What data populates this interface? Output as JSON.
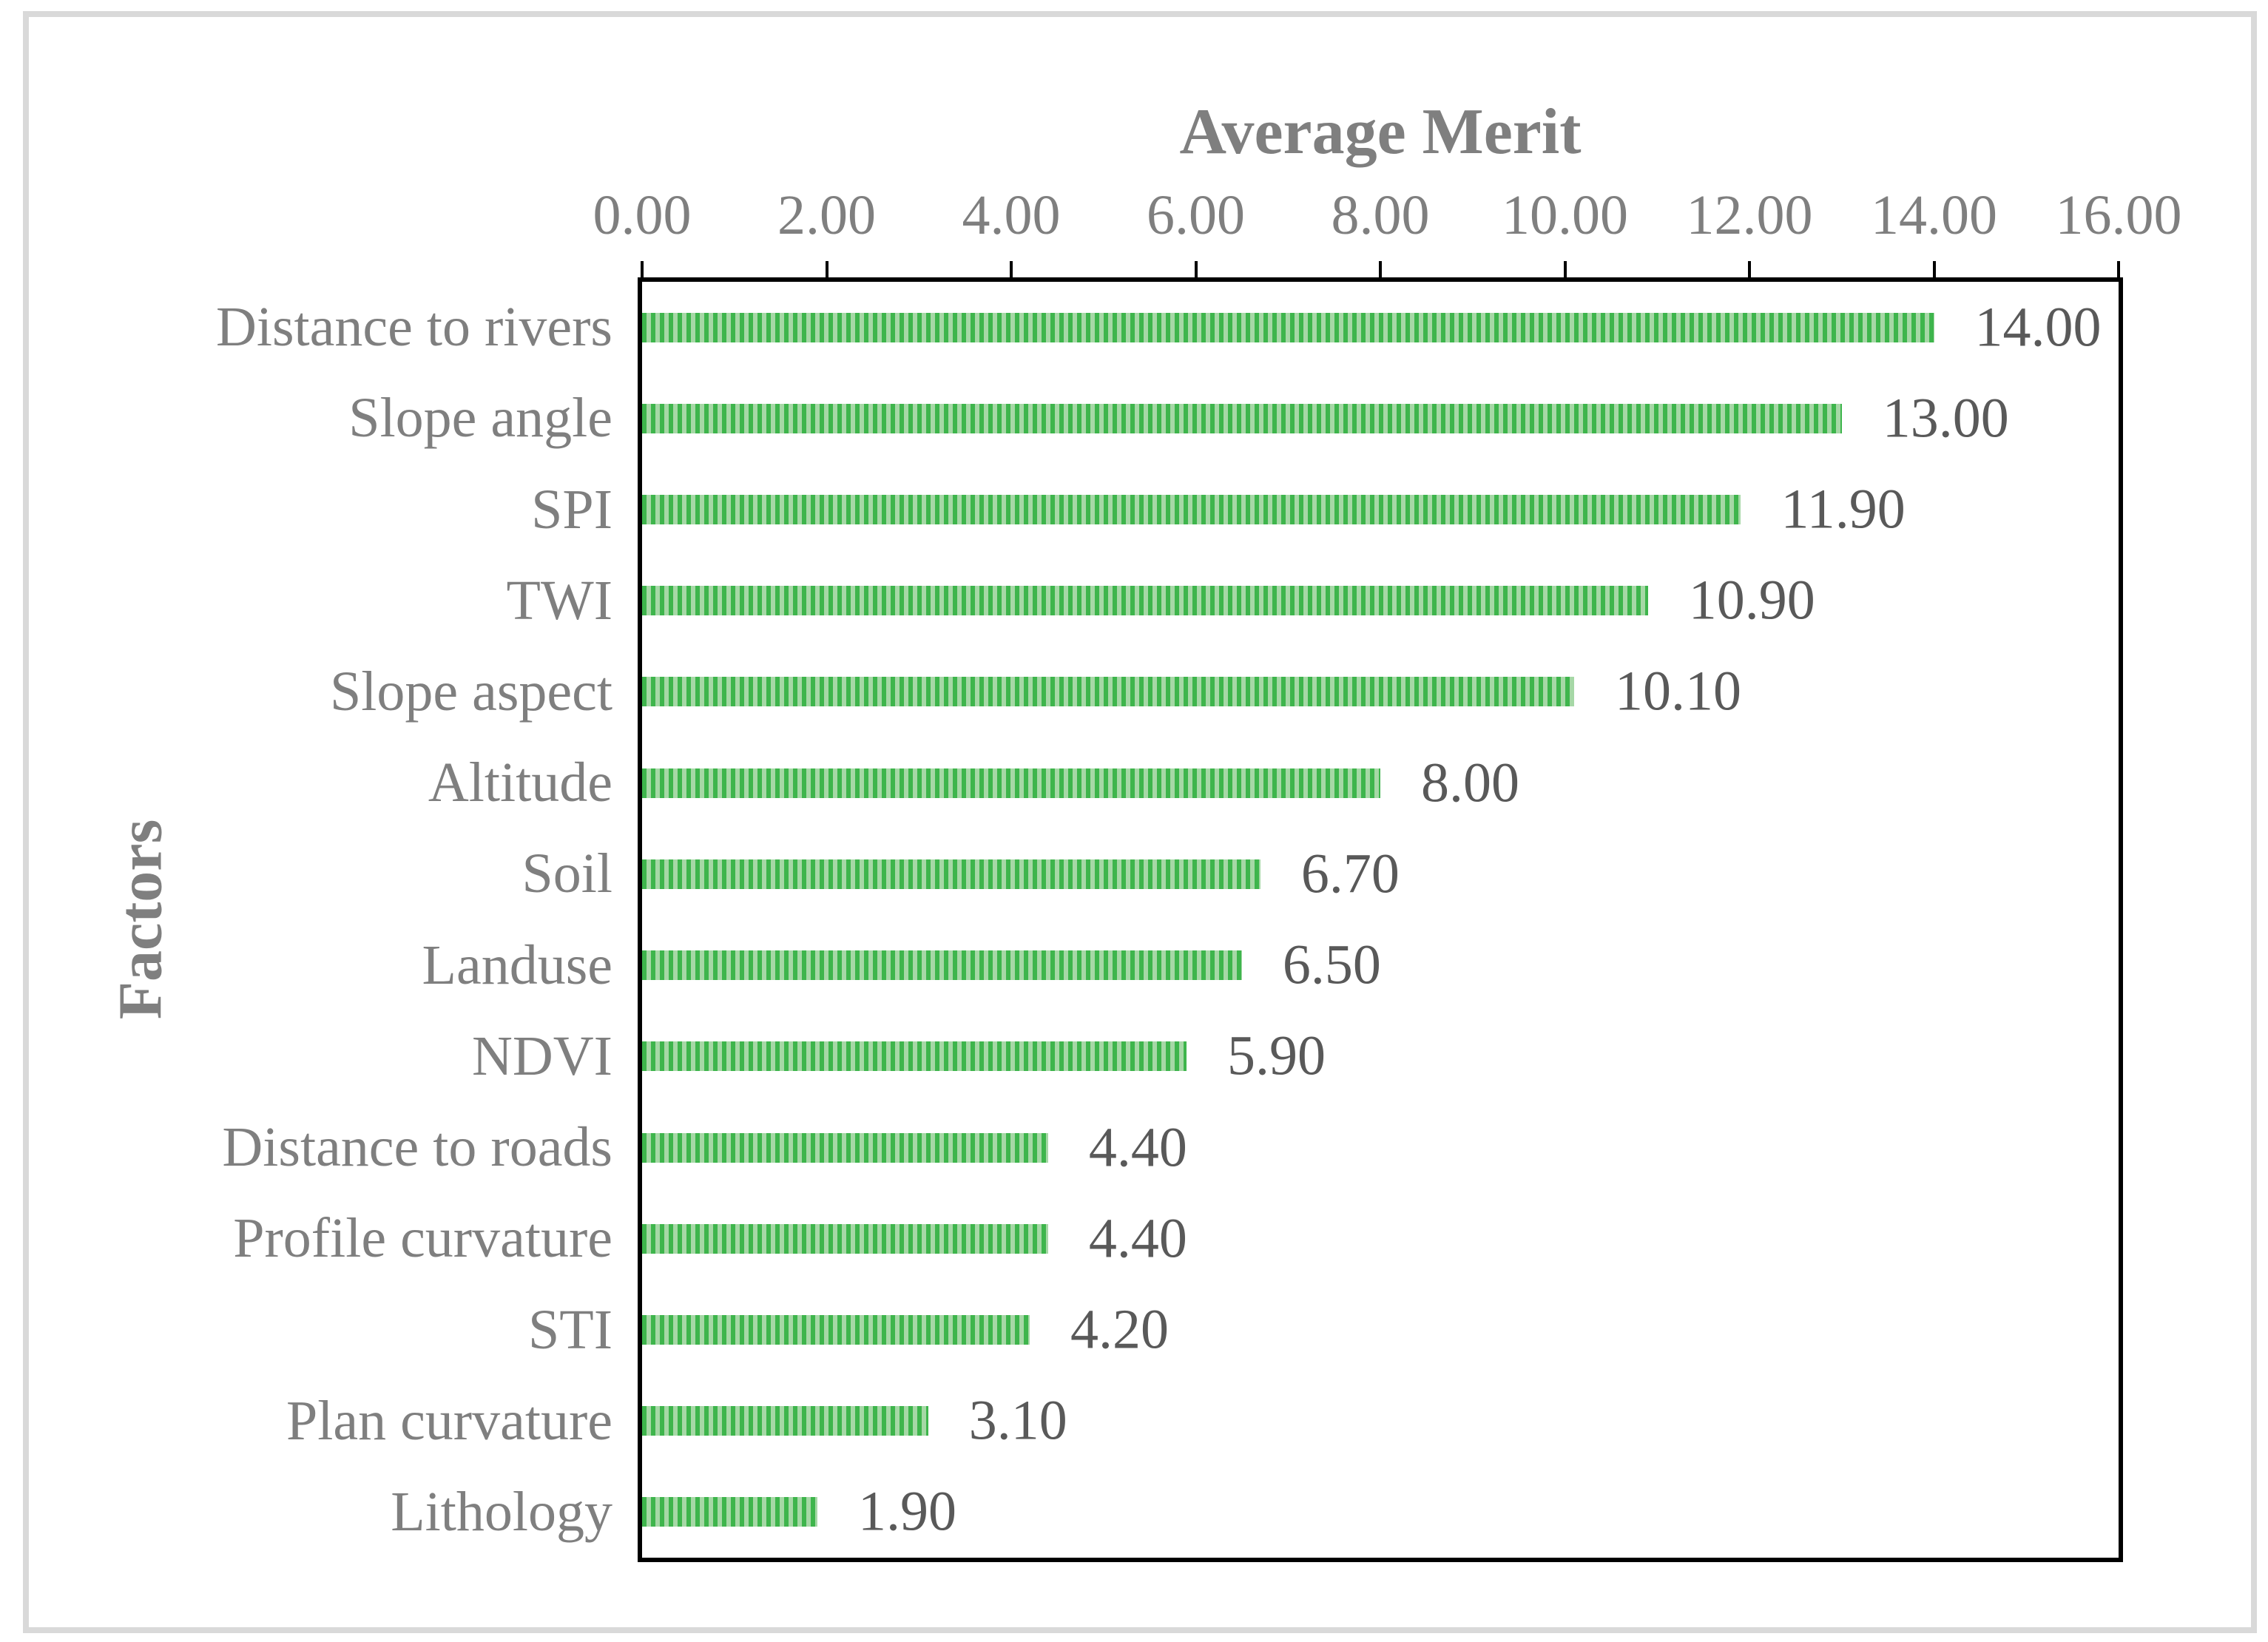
{
  "chart_data": {
    "type": "bar",
    "orientation": "horizontal",
    "title": "Average Merit",
    "xlabel": "",
    "ylabel": "Factors",
    "categories": [
      "Distance to rivers",
      "Slope angle",
      "SPI",
      "TWI",
      "Slope aspect",
      "Altitude",
      "Soil",
      "Landuse",
      "NDVI",
      "Distance to roads",
      "Profile curvature",
      "STI",
      "Plan curvature",
      "Lithology"
    ],
    "values": [
      14.0,
      13.0,
      11.9,
      10.9,
      10.1,
      8.0,
      6.7,
      6.5,
      5.9,
      4.4,
      4.4,
      4.2,
      3.1,
      1.9
    ],
    "value_labels": [
      "14.00",
      "13.00",
      "11.90",
      "10.90",
      "10.10",
      "8.00",
      "6.70",
      "6.50",
      "5.90",
      "4.40",
      "4.40",
      "4.20",
      "3.10",
      "1.90"
    ],
    "xlim": [
      0,
      16
    ],
    "x_tick_values": [
      0,
      2,
      4,
      6,
      8,
      10,
      12,
      14,
      16
    ],
    "x_tick_labels": [
      "0.00",
      "2.00",
      "4.00",
      "6.00",
      "8.00",
      "10.00",
      "12.00",
      "14.00",
      "16.00"
    ],
    "grid": false,
    "legend": "none",
    "bar_pattern": "vertical-stripes",
    "axis_position": "x-axis-on-top"
  },
  "colors": {
    "background": "#FFFFFF",
    "frame_border": "#D9D9D9",
    "axis_line": "#000000",
    "bar_stripe_dark": "#3EB54C",
    "bar_stripe_light": "#A6D8A6",
    "title_text": "#7F7F7F",
    "tick_text": "#7F7F7F",
    "category_text": "#7F7F7F",
    "value_text": "#595959"
  }
}
